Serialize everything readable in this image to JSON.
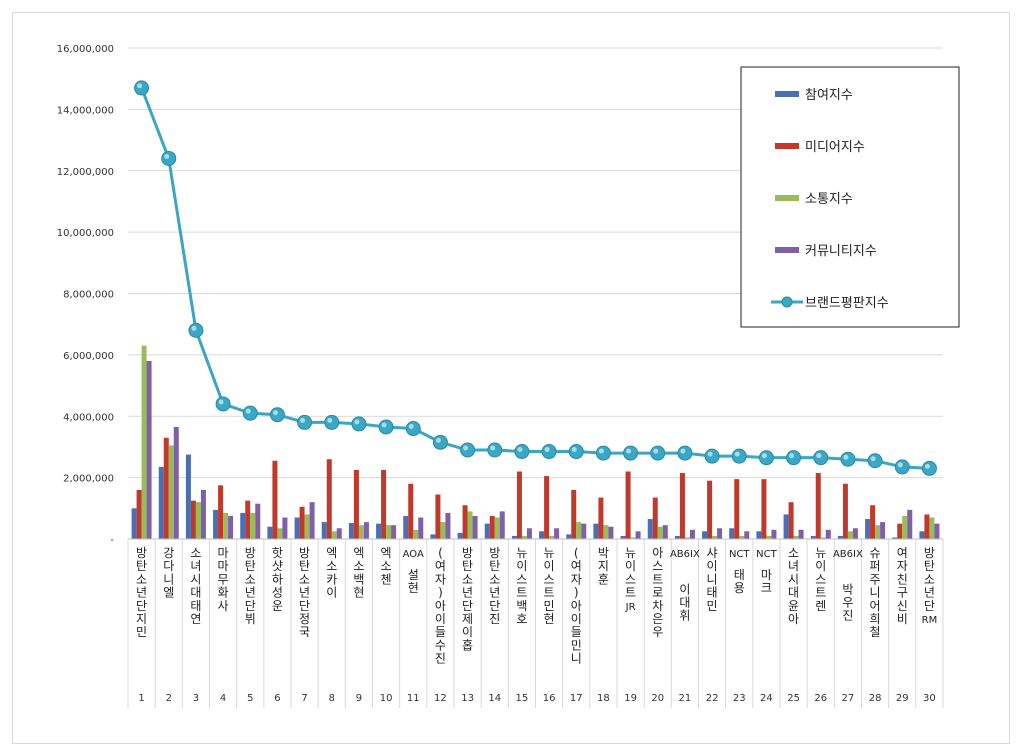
{
  "chart_data": {
    "type": "bar",
    "categories": [
      "방탄소년단 지민",
      "강다니엘",
      "소녀시대 태연",
      "마마무 화사",
      "방탄소년단 뷔",
      "핫샷 하성운",
      "방탄소년단 정국",
      "엑소 카이",
      "엑소 백현",
      "엑소 첸",
      "AOA 설현",
      "(여자)아이들 수진",
      "방탄소년단 제이홉",
      "방탄소년단 진",
      "뉴이스트 백호",
      "뉴이스트 민현",
      "(여자)아이들 민니",
      "박지훈",
      "뉴이스트 JR",
      "아스트로 차은우",
      "AB6IX 이대휘",
      "샤이니 태민",
      "NCT 태용",
      "NCT 마크",
      "소녀시대 윤아",
      "뉴이스트 렌",
      "AB6IX 박우진",
      "슈퍼주니어 희철",
      "여자친구 신비",
      "방탄소년단 RM"
    ],
    "ranks": [
      "1",
      "2",
      "3",
      "4",
      "5",
      "6",
      "7",
      "8",
      "9",
      "10",
      "11",
      "12",
      "13",
      "14",
      "15",
      "16",
      "17",
      "18",
      "19",
      "20",
      "21",
      "22",
      "23",
      "24",
      "25",
      "26",
      "27",
      "28",
      "29",
      "30"
    ],
    "y_ticks": [
      "-",
      "2,000,000",
      "4,000,000",
      "6,000,000",
      "8,000,000",
      "10,000,000",
      "12,000,000",
      "14,000,000",
      "16,000,000"
    ],
    "ylim": [
      0,
      16000000
    ],
    "grid": true,
    "legend_position": "top-right",
    "series": [
      {
        "name": "참여지수",
        "type": "bar",
        "color": "#4a6fb5",
        "values": [
          1000000,
          2350000,
          2750000,
          950000,
          850000,
          400000,
          700000,
          550000,
          520000,
          500000,
          750000,
          150000,
          200000,
          500000,
          100000,
          250000,
          150000,
          500000,
          100000,
          650000,
          100000,
          250000,
          350000,
          250000,
          800000,
          100000,
          100000,
          650000,
          50000,
          250000
        ]
      },
      {
        "name": "미디어지수",
        "type": "bar",
        "color": "#c0392b",
        "values": [
          1600000,
          3300000,
          1250000,
          1750000,
          1250000,
          2550000,
          1050000,
          2600000,
          2250000,
          2250000,
          1800000,
          1450000,
          1100000,
          750000,
          2200000,
          2050000,
          1600000,
          1350000,
          2200000,
          1350000,
          2150000,
          1900000,
          1950000,
          1950000,
          1200000,
          2150000,
          1800000,
          1100000,
          500000,
          800000
        ]
      },
      {
        "name": "소통지수",
        "type": "bar",
        "color": "#9bbb59",
        "values": [
          6300000,
          3050000,
          1200000,
          850000,
          850000,
          350000,
          800000,
          250000,
          450000,
          450000,
          300000,
          550000,
          900000,
          700000,
          100000,
          100000,
          550000,
          450000,
          50000,
          400000,
          50000,
          100000,
          100000,
          100000,
          100000,
          50000,
          250000,
          450000,
          750000,
          700000
        ]
      },
      {
        "name": "커뮤니티지수",
        "type": "bar",
        "color": "#7e5fa8",
        "values": [
          5800000,
          3650000,
          1600000,
          750000,
          1150000,
          700000,
          1200000,
          350000,
          550000,
          450000,
          700000,
          850000,
          750000,
          900000,
          350000,
          350000,
          500000,
          400000,
          250000,
          450000,
          300000,
          350000,
          250000,
          300000,
          300000,
          300000,
          350000,
          550000,
          950000,
          500000
        ]
      },
      {
        "name": "브랜드평판지수",
        "type": "line",
        "color": "#3aa6c4",
        "values": [
          14700000,
          12400000,
          6800000,
          4400000,
          4100000,
          4050000,
          3800000,
          3800000,
          3750000,
          3650000,
          3600000,
          3150000,
          2900000,
          2900000,
          2850000,
          2850000,
          2850000,
          2800000,
          2800000,
          2800000,
          2800000,
          2700000,
          2700000,
          2650000,
          2650000,
          2650000,
          2600000,
          2550000,
          2350000,
          2300000
        ]
      }
    ]
  }
}
